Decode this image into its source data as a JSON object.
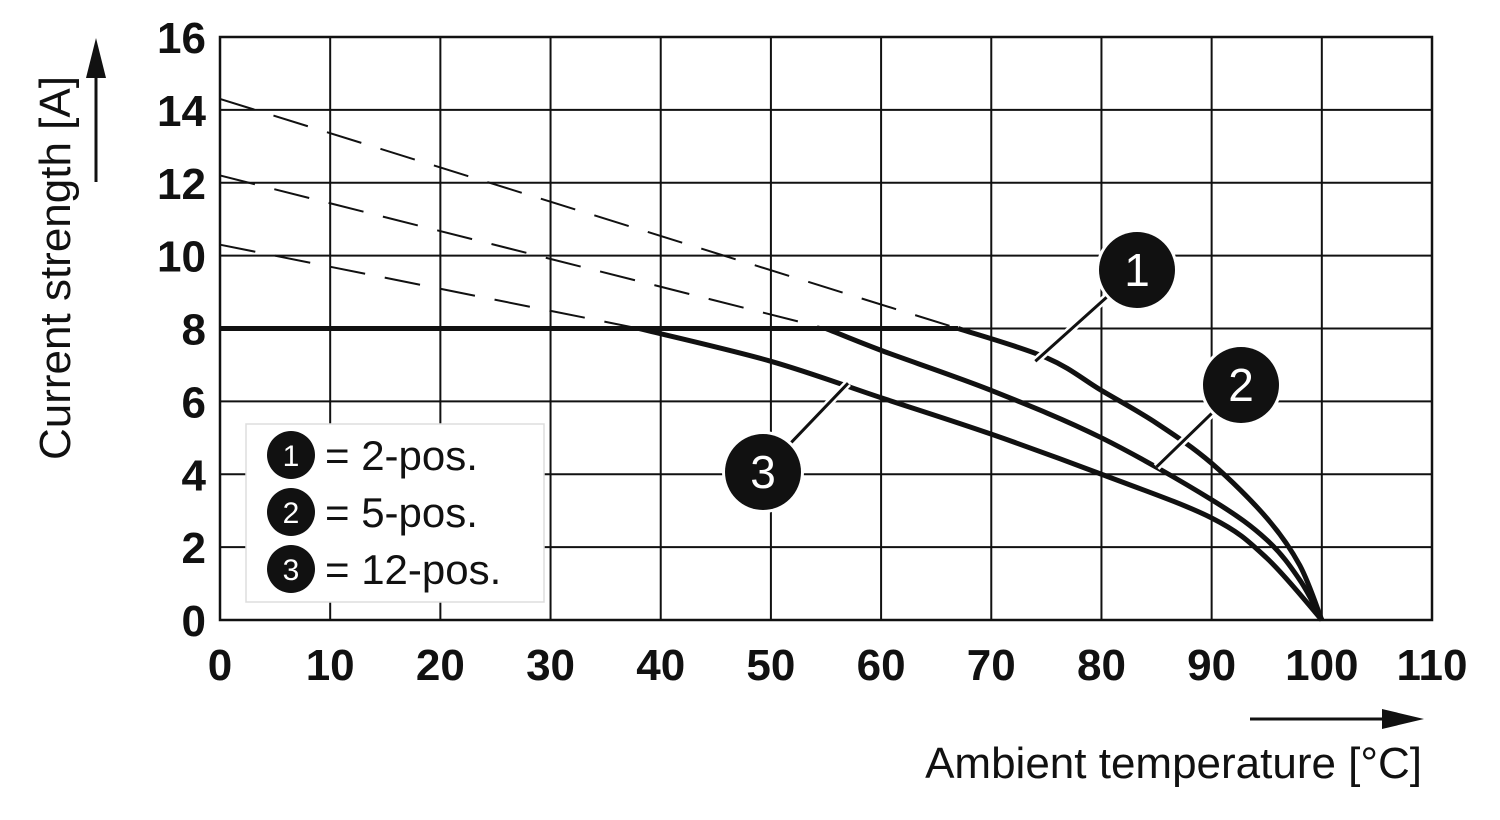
{
  "chart_data": {
    "type": "line",
    "xlabel": "Ambient temperature [°C]",
    "ylabel": "Current strength [A]",
    "xlim": [
      0,
      110
    ],
    "ylim": [
      0,
      16
    ],
    "x_ticks": [
      0,
      10,
      20,
      30,
      40,
      50,
      60,
      70,
      80,
      90,
      100,
      110
    ],
    "y_ticks": [
      0,
      2,
      4,
      6,
      8,
      10,
      12,
      14,
      16
    ],
    "grid": true,
    "legend_position": "bottom-left",
    "legend": [
      {
        "marker": "1",
        "text": "= 2-pos."
      },
      {
        "marker": "2",
        "text": "= 5-pos."
      },
      {
        "marker": "3",
        "text": "= 12-pos."
      }
    ],
    "limit_line": {
      "y": 8
    },
    "series": [
      {
        "marker": "1",
        "solid": [
          [
            67,
            8
          ],
          [
            75,
            7.2
          ],
          [
            80,
            6.3
          ],
          [
            85,
            5.4
          ],
          [
            90,
            4.3
          ],
          [
            95,
            2.8
          ],
          [
            98,
            1.5
          ],
          [
            100,
            0
          ]
        ],
        "dashed": [
          [
            0,
            14.3
          ],
          [
            67,
            8
          ]
        ]
      },
      {
        "marker": "2",
        "solid": [
          [
            55,
            8
          ],
          [
            60,
            7.4
          ],
          [
            70,
            6.3
          ],
          [
            80,
            5.0
          ],
          [
            90,
            3.3
          ],
          [
            95,
            2.2
          ],
          [
            98,
            1.1
          ],
          [
            100,
            0
          ]
        ],
        "dashed": [
          [
            0,
            12.2
          ],
          [
            55,
            8
          ]
        ]
      },
      {
        "marker": "3",
        "solid": [
          [
            38,
            8
          ],
          [
            50,
            7.1
          ],
          [
            60,
            6.1
          ],
          [
            70,
            5.1
          ],
          [
            80,
            4.0
          ],
          [
            90,
            2.8
          ],
          [
            95,
            1.7
          ],
          [
            100,
            0
          ]
        ],
        "dashed": [
          [
            0,
            10.3
          ],
          [
            38,
            8
          ]
        ]
      }
    ],
    "callouts": [
      {
        "marker": "1",
        "points_to": [
          74,
          7.1
        ]
      },
      {
        "marker": "2",
        "points_to": [
          85,
          4.2
        ]
      },
      {
        "marker": "3",
        "points_to": [
          57,
          6.5
        ]
      }
    ]
  }
}
